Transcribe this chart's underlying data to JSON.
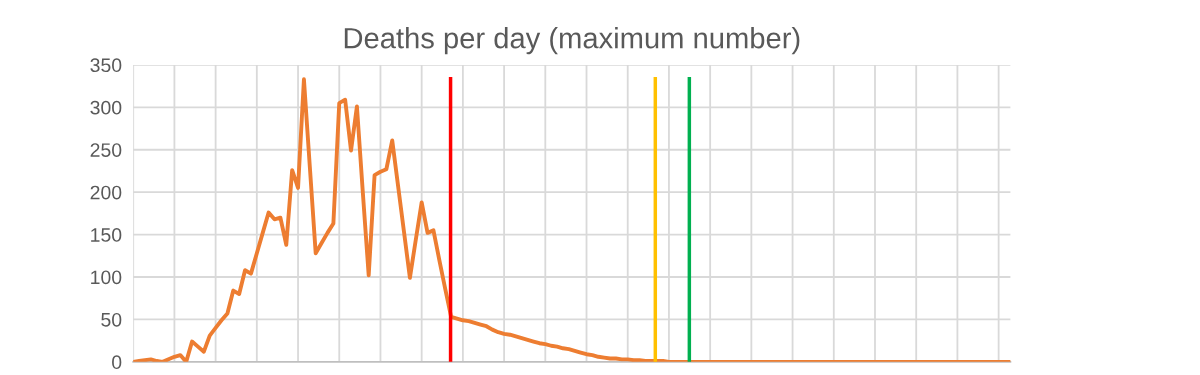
{
  "chart_data": {
    "type": "line",
    "title": "Deaths per day (maximum number)",
    "categories": [
      null,
      null,
      null,
      null,
      null,
      null,
      null,
      null,
      null,
      null,
      null,
      null,
      null,
      null,
      null,
      null,
      null,
      null,
      null,
      null,
      null,
      null,
      null,
      null,
      null,
      null,
      null,
      null,
      null,
      null,
      null,
      null,
      null,
      null,
      null,
      null,
      null,
      null,
      null,
      null,
      null,
      null,
      null,
      null,
      null,
      null,
      null,
      null,
      null,
      null,
      null,
      null,
      null,
      null,
      null,
      null,
      null,
      null,
      null,
      null,
      null,
      null,
      null,
      null,
      null,
      null,
      null,
      null,
      null,
      null,
      null,
      null,
      null,
      null,
      null,
      null,
      null,
      null,
      null,
      null,
      null,
      null,
      null,
      null,
      null,
      null,
      null,
      null,
      null,
      null,
      null,
      null,
      null,
      null,
      null,
      null,
      null,
      null,
      null,
      null,
      null,
      null,
      null,
      null,
      null,
      null,
      null,
      null,
      null,
      null,
      null,
      null,
      null,
      null,
      null,
      null,
      null,
      null,
      null,
      null,
      null,
      null,
      null,
      null,
      null,
      null,
      null,
      null,
      null,
      null,
      null,
      null,
      null,
      null,
      null,
      null,
      null,
      null,
      null,
      null,
      null,
      null,
      null,
      null,
      null,
      null,
      null,
      null,
      null,
      null
    ],
    "series": [
      {
        "color": "#ed7d31",
        "values": [
          0,
          1,
          2,
          3,
          1,
          0,
          3,
          6,
          8,
          0,
          24,
          18,
          12,
          31,
          40,
          49,
          57,
          84,
          80,
          108,
          104,
          128,
          152,
          176,
          168,
          170,
          138,
          226,
          205,
          333,
          230,
          128,
          140,
          152,
          163,
          305,
          309,
          249,
          301,
          200,
          102,
          220,
          224,
          227,
          261,
          207,
          153,
          99,
          144,
          188,
          152,
          155,
          120,
          86,
          53,
          51,
          49,
          48,
          46,
          44,
          42,
          38,
          35,
          33,
          32,
          30,
          28,
          26,
          24,
          22,
          21,
          19,
          18,
          16,
          15,
          13,
          11,
          9,
          8,
          6,
          5,
          4,
          4,
          3,
          3,
          2,
          2,
          1,
          1,
          1,
          1,
          0,
          0,
          0,
          0,
          0,
          0,
          0,
          0,
          0,
          0,
          0,
          0,
          0,
          0,
          0,
          0,
          0,
          0,
          0,
          0,
          0,
          0,
          0,
          0,
          0,
          0,
          0,
          0,
          0,
          0,
          0,
          0,
          0,
          0,
          0,
          0,
          0,
          0,
          0,
          0,
          0,
          0,
          0,
          0,
          0,
          0,
          0,
          0,
          0,
          0,
          0,
          0,
          0,
          0,
          0,
          0,
          0,
          0,
          0
        ]
      }
    ],
    "ylim": [
      0,
      350
    ],
    "yticks": [
      0,
      50,
      100,
      150,
      200,
      250,
      300,
      350
    ],
    "grid": true,
    "tick_labels": "y",
    "marker": "none",
    "line_style": "solid"
  }
}
